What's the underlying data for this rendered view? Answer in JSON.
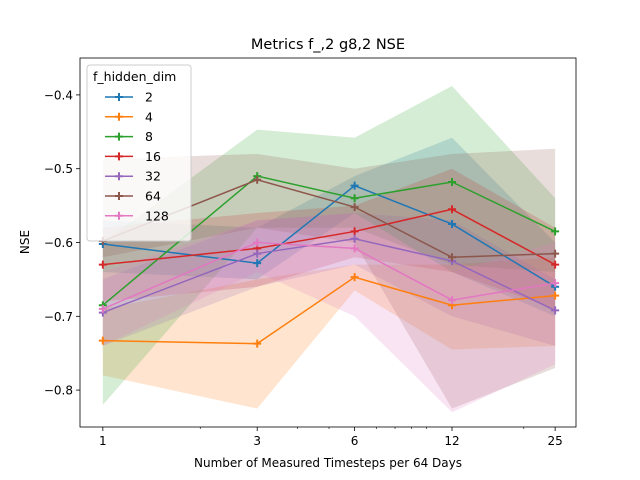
{
  "chart_data": {
    "type": "line",
    "title": "Metrics f_,2 g8,2 NSE",
    "xlabel": "Number of Measured Timesteps per 64 Days",
    "ylabel": "NSE",
    "x": [
      1,
      3,
      6,
      12,
      25
    ],
    "x_scale": "log",
    "xlim": [
      0.85,
      29
    ],
    "x_ticks": [
      "1",
      "3",
      "6",
      "12",
      "25"
    ],
    "ylim": [
      -0.85,
      -0.35
    ],
    "y_ticks": [
      -0.8,
      -0.7,
      -0.6,
      -0.5,
      -0.4
    ],
    "y_tick_labels": [
      "−0.8",
      "−0.7",
      "−0.6",
      "−0.5",
      "−0.4"
    ],
    "grid": false,
    "legend": {
      "title": "f_hidden_dim",
      "placement": "top-left"
    },
    "series": [
      {
        "name": "2",
        "color": "#1f77b4",
        "values": [
          -0.602,
          -0.628,
          -0.523,
          -0.575,
          -0.66
        ],
        "lower": [
          -0.64,
          -0.65,
          -0.56,
          -0.64,
          -0.7
        ],
        "upper": [
          -0.57,
          -0.58,
          -0.51,
          -0.458,
          -0.6
        ]
      },
      {
        "name": "4",
        "color": "#ff7f0e",
        "values": [
          -0.733,
          -0.737,
          -0.647,
          -0.685,
          -0.672
        ],
        "lower": [
          -0.78,
          -0.825,
          -0.665,
          -0.745,
          -0.74
        ],
        "upper": [
          -0.69,
          -0.65,
          -0.63,
          -0.63,
          -0.62
        ]
      },
      {
        "name": "8",
        "color": "#2ca02c",
        "values": [
          -0.685,
          -0.51,
          -0.54,
          -0.518,
          -0.585
        ],
        "lower": [
          -0.82,
          -0.58,
          -0.58,
          -0.63,
          -0.64
        ],
        "upper": [
          -0.6,
          -0.447,
          -0.458,
          -0.388,
          -0.54
        ]
      },
      {
        "name": "16",
        "color": "#d62728",
        "values": [
          -0.63,
          -0.608,
          -0.585,
          -0.555,
          -0.63
        ],
        "lower": [
          -0.68,
          -0.66,
          -0.62,
          -0.64,
          -0.69
        ],
        "upper": [
          -0.58,
          -0.56,
          -0.55,
          -0.5,
          -0.58
        ]
      },
      {
        "name": "32",
        "color": "#9467bd",
        "values": [
          -0.695,
          -0.615,
          -0.595,
          -0.625,
          -0.692
        ],
        "lower": [
          -0.74,
          -0.66,
          -0.63,
          -0.7,
          -0.74
        ],
        "upper": [
          -0.65,
          -0.57,
          -0.56,
          -0.57,
          -0.65
        ]
      },
      {
        "name": "64",
        "color": "#8c564b",
        "values": [
          -0.598,
          -0.515,
          -0.552,
          -0.62,
          -0.615
        ],
        "lower": [
          -0.62,
          -0.58,
          -0.6,
          -0.825,
          -0.77
        ],
        "upper": [
          -0.487,
          -0.48,
          -0.5,
          -0.48,
          -0.473
        ]
      },
      {
        "name": "128",
        "color": "#e377c2",
        "values": [
          -0.69,
          -0.6,
          -0.608,
          -0.678,
          -0.655
        ],
        "lower": [
          -0.74,
          -0.64,
          -0.7,
          -0.83,
          -0.765
        ],
        "upper": [
          -0.64,
          -0.57,
          -0.56,
          -0.64,
          -0.6
        ]
      }
    ]
  }
}
